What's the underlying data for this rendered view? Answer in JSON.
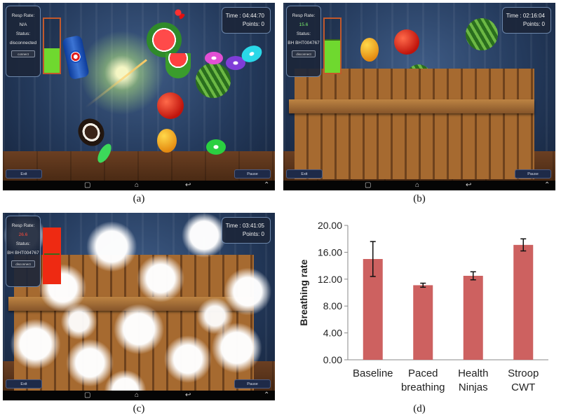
{
  "colors": {
    "meter_green": "#6fd92f",
    "meter_red": "#ee2a12",
    "meter_border": "#c2582b",
    "bar_fill": "#cd6160",
    "panel_dark": "#1c263a"
  },
  "icons": [
    "recent-apps-icon",
    "home-icon",
    "back-icon",
    "chevron-up-icon"
  ],
  "panels": [
    {
      "caption": "(a)",
      "resp_label": "Resp Rate:",
      "resp_value": "N/A",
      "status_label": "Status:",
      "status_value": "disconnected",
      "connect_label": "connect",
      "time": "Time : 04:44:70",
      "points": "Points: 0",
      "exit_label": "Exit",
      "pause_label": "Pause",
      "meter_level": 0.45
    },
    {
      "caption": "(b)",
      "resp_label": "Resp Rate:",
      "resp_value": "15.6",
      "status_label": "Status:",
      "status_value": "BH BHT004767",
      "connect_label": "disconnect",
      "time": "Time : 02:16:04",
      "points": "Points: 0",
      "exit_label": "Exit",
      "pause_label": "Pause",
      "meter_level": 0.6
    },
    {
      "caption": "(c)",
      "resp_label": "Resp Rate:",
      "resp_value": "26.6",
      "status_label": "Status:",
      "status_value": "BH BHT004767",
      "connect_label": "disconnect",
      "time": "Time : 03:41:05",
      "points": "Points: 0",
      "exit_label": "Exit",
      "pause_label": "Pause",
      "meter_level": 1.0
    }
  ],
  "chart_data": {
    "type": "bar",
    "caption": "(d)",
    "categories": [
      [
        "Baseline"
      ],
      [
        "Paced",
        "breathing"
      ],
      [
        "Health",
        "Ninjas"
      ],
      [
        "Stroop",
        "CWT"
      ]
    ],
    "values": [
      15.0,
      11.1,
      12.5,
      17.1
    ],
    "error": [
      2.6,
      0.3,
      0.6,
      0.9
    ],
    "ylabel": "Breathing rate",
    "ylim": [
      0,
      20
    ],
    "yticks": [
      "0.00",
      "4.00",
      "8.00",
      "12.00",
      "16.00",
      "20.00"
    ],
    "grid": false,
    "legend": "none"
  }
}
